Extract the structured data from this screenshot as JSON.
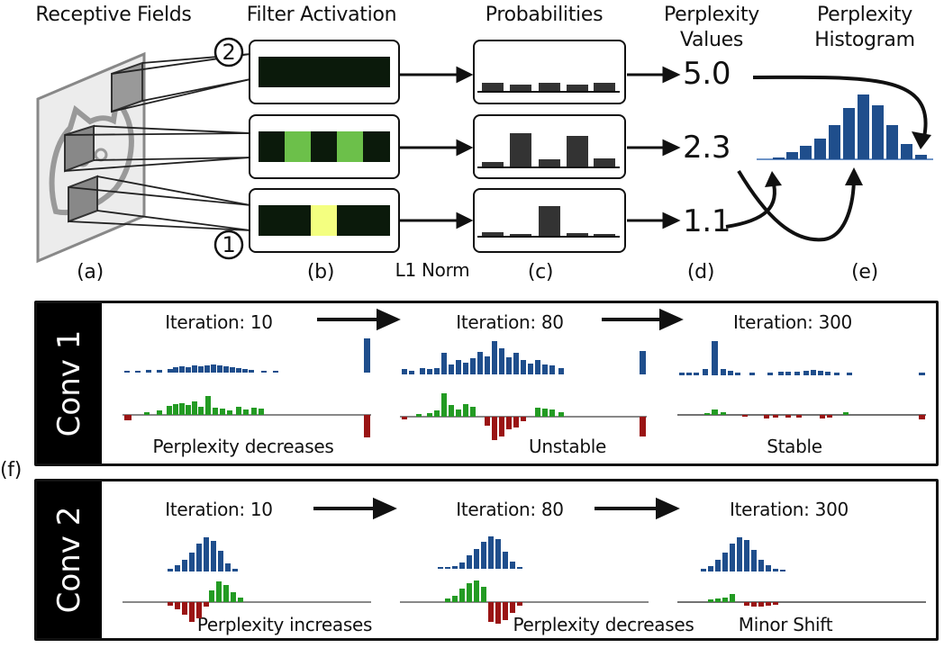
{
  "header": {
    "receptive_fields": "Receptive Fields",
    "filter_activation": "Filter Activation",
    "probabilities": "Probabilities",
    "perplexity_values_1": "Perplexity",
    "perplexity_values_2": "Values",
    "perplexity_histogram_1": "Perplexity",
    "perplexity_histogram_2": "Histogram"
  },
  "markers": {
    "top": "②",
    "bottom": "①"
  },
  "values": {
    "v1": "5.0",
    "v2": "2.3",
    "v3": "1.1"
  },
  "panel_labels": {
    "a": "(a)",
    "b": "(b)",
    "c": "(c)",
    "d": "(d)",
    "e": "(e)",
    "f": "(f)"
  },
  "l1_norm": "L1 Norm",
  "conv1": {
    "title": "Conv 1",
    "it1": "Iteration: 10",
    "it2": "Iteration: 80",
    "it3": "Iteration: 300",
    "note1": "Perplexity decreases",
    "note2": "Unstable",
    "note3": "Stable"
  },
  "conv2": {
    "title": "Conv 2",
    "it1": "Iteration: 10",
    "it2": "Iteration: 80",
    "it3": "Iteration: 300",
    "note1": "Perplexity increases",
    "note2": "Perplexity decreases",
    "note3": "Minor Shift"
  },
  "colors": {
    "blue": "#1f4e8c",
    "light_blue": "#6f95c8",
    "green": "#239b23",
    "red": "#9a1414",
    "dark": "#0b1a0b",
    "act_green": "#6cc04a",
    "act_yellow": "#f4ff80"
  }
}
